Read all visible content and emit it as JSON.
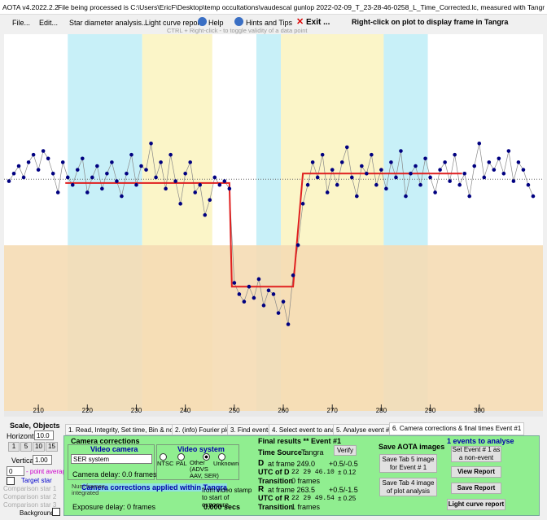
{
  "window": {
    "title": "AOTA v4.2022.2.2",
    "file_info": "File being processed is C:\\Users\\EricF\\Desktop\\temp occultations\\vaudescal gunlop 2022-02-09_T_23-28-46-0258_L_Time_Corrected.lc, measured with Tangra"
  },
  "menu": [
    "File...",
    "Edit...",
    "Star diameter analysis...",
    "Light curve report",
    "Help",
    "Hints and Tips",
    "Exit ..."
  ],
  "menu_hint": "Right-click on plot to display frame in Tangra",
  "plot_hint": "CTRL + Right-click  - to toggle validity of a data point",
  "plot": {
    "xlim": [
      203,
      313
    ],
    "ylim": [
      0,
      100
    ],
    "xticks": [
      210,
      220,
      230,
      240,
      250,
      260,
      270,
      280,
      290,
      300
    ],
    "regions": [
      {
        "color": "#c8f0f8",
        "range": [
          216,
          231.2
        ]
      },
      {
        "color": "#fbf5c8",
        "range": [
          231.2,
          245.5
        ]
      },
      {
        "color": "#c8f0f8",
        "range": [
          254.5,
          259.5
        ]
      },
      {
        "color": "#fbf5c8",
        "range": [
          259.5,
          280.5
        ]
      },
      {
        "color": "#c8f0f8",
        "range": [
          280.5,
          289.5
        ]
      }
    ],
    "lower_band": {
      "color": "#f5dcb4",
      "range": [
        0,
        44
      ]
    },
    "baseline": 61.5,
    "x": [
      204,
      205,
      206,
      207,
      208,
      209,
      210,
      211,
      212,
      213,
      214,
      215,
      216,
      217,
      218,
      219,
      220,
      221,
      222,
      223,
      224,
      225,
      226,
      227,
      228,
      229,
      230,
      231,
      232,
      233,
      234,
      235,
      236,
      237,
      238,
      239,
      240,
      241,
      242,
      243,
      244,
      245,
      246,
      247,
      248,
      249,
      250,
      251,
      252,
      253,
      254,
      255,
      256,
      257,
      258,
      259,
      260,
      261,
      262,
      263,
      264,
      265,
      266,
      267,
      268,
      269,
      270,
      271,
      272,
      273,
      274,
      275,
      276,
      277,
      278,
      279,
      280,
      281,
      282,
      283,
      284,
      285,
      286,
      287,
      288,
      289,
      290,
      291,
      292,
      293,
      294,
      295,
      296,
      297,
      298,
      299,
      300,
      301,
      302,
      303,
      304,
      305,
      306,
      307,
      308,
      309,
      310,
      311
    ],
    "values": [
      61,
      63,
      65,
      62,
      66,
      68,
      64,
      69,
      67,
      63,
      58,
      66,
      62,
      60,
      64,
      67,
      58,
      62,
      65,
      59,
      63,
      66,
      61,
      57,
      63,
      68,
      60,
      65,
      64,
      71,
      62,
      66,
      59,
      68,
      61,
      55,
      63,
      66,
      58,
      60,
      52,
      56,
      62,
      60,
      61,
      59,
      34,
      31,
      29,
      33,
      30,
      35,
      28,
      32,
      31,
      26,
      29,
      23,
      36,
      44,
      55,
      60,
      66,
      62,
      68,
      58,
      64,
      60,
      66,
      70,
      62,
      57,
      65,
      63,
      68,
      60,
      64,
      59,
      66,
      62,
      69,
      57,
      63,
      65,
      60,
      67,
      62,
      58,
      64,
      66,
      61,
      68,
      60,
      63,
      57,
      65,
      71,
      62,
      66,
      64,
      67,
      63,
      69,
      61,
      66,
      64,
      60,
      57
    ],
    "point_color": "#000080",
    "model": {
      "color": "#e02020",
      "x": [
        215.5,
        249,
        249.5,
        262,
        264,
        296.5
      ],
      "values": [
        60.5,
        60.5,
        33,
        33,
        63,
        63
      ]
    }
  },
  "scale_panel": {
    "title": "Scale, Objects",
    "horizontal_label": "Horizontal",
    "horizontal": "10.0",
    "buttons": [
      "1",
      "5",
      "10",
      "15"
    ],
    "vertical_label": "Vertical",
    "vertical": "1.00",
    "average": "0",
    "average_label": "- point average",
    "objects": [
      "Target star",
      "Comparison star 1",
      "Comparison star 2",
      "Comparison star 3",
      "Background"
    ]
  },
  "tabs": [
    "1. Read, Integrity, Set time, Bin & normalise",
    "2. (info) Fourier plot",
    "3. Find events",
    "4. Select event to analyse",
    "5. Analyse event #1",
    "6. Camera corrections & final times Event #1"
  ],
  "camera": {
    "title": "Camera corrections",
    "video_camera": "Video camera",
    "camera_select": "SER system",
    "camera_delay": "Camera delay: 0.0 frames",
    "video_system": "Video system",
    "systems": [
      "NTSC",
      "PAL",
      "Other (ADVS AAV, SER)",
      "Unknown"
    ],
    "applied": "Camera corrections applied within Tangra",
    "frames_integrated": "Num frames integrated",
    "stamp_note": "from video stamp to start of exposure",
    "exposure_delay": "Exposure delay: 0 frames",
    "secs": "0.000 secs"
  },
  "results": {
    "title": "Final results  **  Event #1",
    "time_source_label": "Time Source :",
    "time_source": "Tangra",
    "verify": "Verify",
    "d": {
      "label": "D",
      "frame": "at frame 249.0",
      "err": "+0.5/-0.5",
      "utc_label": "UTC of D",
      "utc": "22 29 46.10",
      "utc_err": "± 0.12",
      "transition": "Transition",
      "transition_value": "0 frames"
    },
    "r": {
      "label": "R",
      "frame": "at frame 263.5",
      "err": "+0.5/-1.5",
      "utc_label": "UTC of R",
      "utc": "22 29 49.54",
      "utc_err": "± 0.25",
      "transition": "Transition",
      "transition_value": "1 frames"
    }
  },
  "save": {
    "title": "Save AOTA images",
    "tab5": "Save Tab 5 image for Event # 1",
    "tab4": "Save Tab 4 image of plot analysis"
  },
  "events": {
    "title": "1 events to analyse",
    "non_event": "Set Event # 1 as a non-event",
    "view": "View Report",
    "save": "Save Report",
    "lc": "Light curve report"
  }
}
